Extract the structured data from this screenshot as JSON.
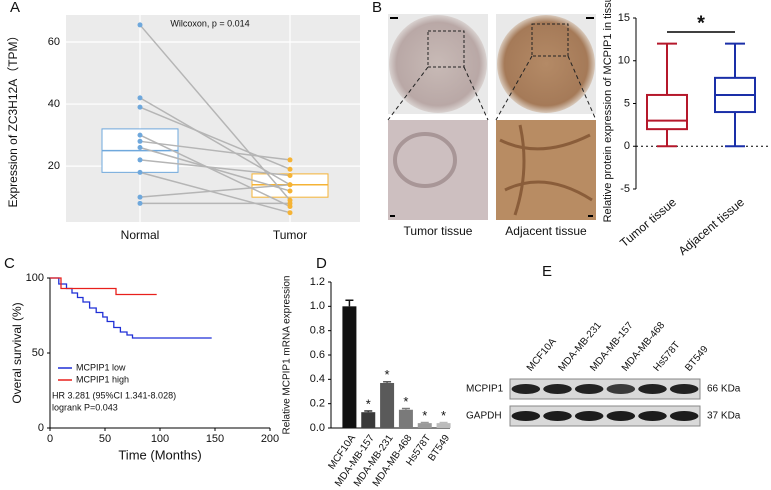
{
  "panel_labels": [
    "A",
    "B",
    "C",
    "D",
    "E"
  ],
  "chart_data": [
    {
      "type": "paired_box",
      "ylabel": "Expression of ZC3H12A（TPM）",
      "annotation": "Wilcoxon, p = 0.014",
      "categories": [
        "Normal",
        "Tumor"
      ],
      "colors": [
        "#6fa8dc",
        "#f5b335"
      ],
      "values": [
        [
          65.5,
          42,
          39,
          30,
          28,
          26,
          22,
          18,
          10,
          8
        ],
        [
          9,
          14,
          19,
          7,
          22,
          12,
          17,
          5,
          14,
          8
        ]
      ],
      "boxes": [
        {
          "q1": 18,
          "median": 25,
          "q3": 32
        },
        {
          "q1": 10,
          "median": 14,
          "q3": 17.5
        }
      ],
      "ylim": [
        2,
        68.7
      ],
      "yticks": [
        20,
        40,
        60
      ],
      "grid": true
    },
    {
      "type": "box",
      "ylabel": "Relative protein expression of MCPIP1 in tissues",
      "annotation": "*",
      "categories": [
        "Tumor tissue",
        "Adjacent tissue"
      ],
      "colors": [
        "#b5182b",
        "#1a2fa8"
      ],
      "boxes": [
        {
          "min": 0,
          "q1": 2,
          "median": 3,
          "q3": 6,
          "max": 12
        },
        {
          "min": 0,
          "q1": 4,
          "median": 6,
          "q3": 8,
          "max": 12
        }
      ],
      "ylim": [
        -5,
        15
      ],
      "yticks": [
        -5,
        0,
        5,
        10,
        15
      ],
      "reference_line": 0
    },
    {
      "type": "survival",
      "xlabel": "Time (Months)",
      "ylabel": "Overal survival (%)",
      "xlim": [
        0,
        200
      ],
      "xticks": [
        0,
        50,
        100,
        150,
        200
      ],
      "ylim": [
        0,
        100
      ],
      "yticks": [
        0,
        50,
        100
      ],
      "series": [
        {
          "name": "MCPIP1 low",
          "color": "#1f2fd6",
          "x": [
            0,
            8,
            8,
            15,
            15,
            20,
            20,
            25,
            25,
            30,
            30,
            36,
            36,
            42,
            42,
            48,
            48,
            52,
            52,
            58,
            58,
            64,
            64,
            70,
            70,
            75,
            75,
            147
          ],
          "y": [
            100,
            100,
            96,
            96,
            93,
            93,
            90,
            90,
            87,
            87,
            84,
            84,
            80,
            80,
            77,
            77,
            74,
            74,
            71,
            71,
            67,
            67,
            64,
            64,
            62,
            62,
            60,
            60
          ]
        },
        {
          "name": "MCPIP1 high",
          "color": "#e8201c",
          "x": [
            0,
            10,
            10,
            60,
            60,
            97
          ],
          "y": [
            100,
            100,
            93,
            93,
            89,
            89
          ]
        }
      ],
      "annotations": [
        "HR 3.281 (95%CI 1.341-8.028)",
        "logrank P=0.043"
      ]
    },
    {
      "type": "bar",
      "ylabel": "Relative MCPIP1 mRNA expression",
      "categories": [
        "MCF10A",
        "MDA-MB-157",
        "MDA-MB-231",
        "MDA-MB-468",
        "Hs578T",
        "BT549"
      ],
      "values": [
        1.0,
        0.13,
        0.37,
        0.15,
        0.04,
        0.04
      ],
      "errors": [
        0.05,
        0.01,
        0.01,
        0.01,
        0.005,
        0.005
      ],
      "colors": [
        "#111111",
        "#3a3a3a",
        "#5a5a5a",
        "#7a7a7a",
        "#9a9a9a",
        "#bbbbbb"
      ],
      "annotations": [
        null,
        "*",
        "*",
        "*",
        "*",
        "*"
      ],
      "ylim": [
        0,
        1.2
      ],
      "yticks": [
        {
          "value": 0,
          "label": "0.0"
        },
        {
          "value": 0.2,
          "label": "0.2"
        },
        {
          "value": 0.4,
          "label": "0.4"
        },
        {
          "value": 0.6,
          "label": "0.6"
        },
        {
          "value": 0.8,
          "label": "0.8"
        },
        {
          "value": 1,
          "label": "1.0"
        },
        {
          "value": 1.2,
          "label": "1.2"
        }
      ]
    }
  ],
  "tissue_images": {
    "labels": [
      "Tumor tissue",
      "Adjacent tissue"
    ]
  },
  "western_blot": {
    "lanes": [
      "MCF10A",
      "MDA-MB-231",
      "MDA-MB-157",
      "MDA-MB-468",
      "Hs578T",
      "BT549"
    ],
    "rows": [
      {
        "protein": "MCPIP1",
        "size": "66 KDa"
      },
      {
        "protein": "GAPDH",
        "size": "37 KDa"
      }
    ]
  }
}
